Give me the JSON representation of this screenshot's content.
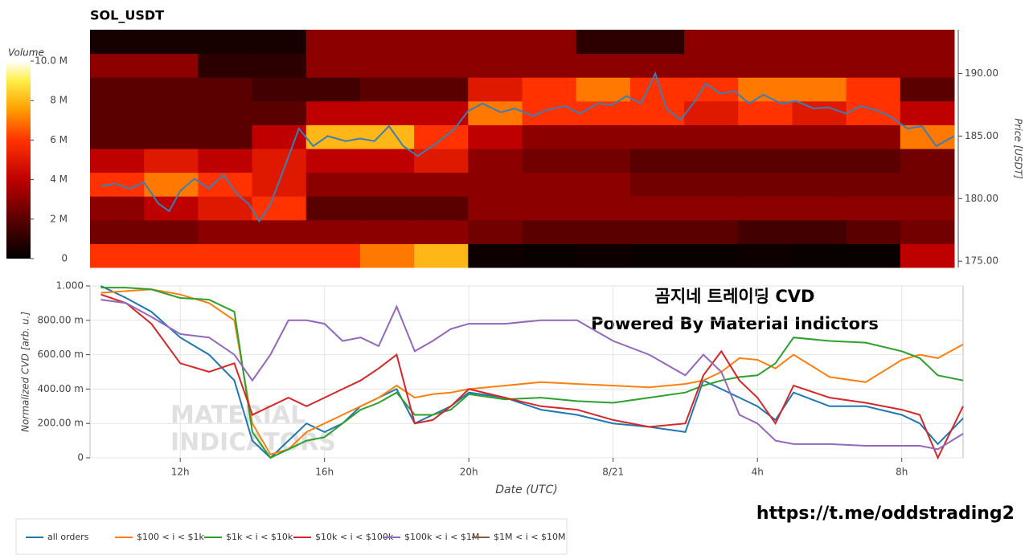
{
  "chart_data": [
    {
      "type": "heatmap",
      "title": "SOL_USDT",
      "colorbar_title": "Volume",
      "colorbar_lim": [
        0,
        10
      ],
      "colorbar_ticks": [
        0,
        {
          "value": 2,
          "label": "2 M"
        },
        {
          "value": 4,
          "label": "4 M"
        },
        {
          "value": 6,
          "label": "6 M"
        },
        {
          "value": 8,
          "label": "8 M"
        },
        {
          "value": 10,
          "label": "10.0 M"
        }
      ],
      "ylabel": "Price [USDT]",
      "ylim": [
        174.5,
        193.5
      ],
      "yticks": [
        {
          "value": 175,
          "label": "175.00"
        },
        {
          "value": 180,
          "label": "180.00"
        },
        {
          "value": 185,
          "label": "185.00"
        },
        {
          "value": 190,
          "label": "190.00"
        }
      ],
      "xlim": [
        9.5,
        33.5
      ],
      "time_bins": [
        9.5,
        11,
        12.5,
        14,
        15.5,
        17,
        18.5,
        20,
        21.5,
        23,
        24.5,
        26,
        27.5,
        29,
        30.5,
        32,
        33.5
      ],
      "price_bins": [
        174.5,
        176.4,
        178.3,
        180.2,
        182.1,
        184.0,
        185.9,
        187.8,
        189.7,
        191.6,
        193.5
      ],
      "volume": [
        [
          6,
          6,
          6,
          6,
          6,
          7,
          8,
          0.3,
          0.2,
          0.3,
          0.2,
          0.2,
          0.3,
          0.2,
          0.2,
          4
        ],
        [
          2.5,
          2.5,
          3,
          3,
          3,
          3,
          3,
          2.5,
          2,
          2,
          2,
          2,
          1.5,
          1.5,
          2,
          2.5
        ],
        [
          3,
          4,
          5,
          6,
          2,
          2,
          2,
          3,
          3,
          3,
          3,
          3,
          3,
          3,
          3,
          3
        ],
        [
          6,
          7,
          6,
          5,
          3,
          3,
          3,
          3,
          3,
          3,
          2.5,
          2.5,
          2.5,
          2.5,
          2.5,
          2.5
        ],
        [
          4,
          5,
          4,
          5,
          4,
          4,
          5,
          3,
          2.5,
          2.5,
          2,
          2,
          2,
          2,
          2,
          2.5
        ],
        [
          2,
          2,
          2,
          4,
          8,
          8,
          6,
          4,
          3,
          3,
          3,
          3,
          3,
          3,
          3,
          7
        ],
        [
          2,
          2,
          2,
          2,
          4,
          4,
          4,
          7,
          6,
          6,
          6,
          5,
          6,
          5,
          6,
          4
        ],
        [
          2,
          2,
          2,
          1.5,
          1.5,
          2,
          2,
          5,
          6,
          7,
          6,
          6,
          7,
          7,
          6,
          2
        ],
        [
          3,
          3,
          1,
          1,
          3,
          3,
          3,
          3,
          3,
          3,
          3,
          3,
          3,
          3,
          3,
          3
        ],
        [
          0.5,
          0.5,
          0.5,
          0.5,
          3,
          3,
          3,
          3,
          3,
          1,
          1,
          3,
          3,
          3,
          3,
          3
        ]
      ],
      "price": {
        "color": "#3a7fb5",
        "x": [
          9.8,
          10.2,
          10.6,
          11.0,
          11.4,
          11.7,
          12.0,
          12.4,
          12.8,
          13.2,
          13.6,
          13.9,
          14.2,
          14.5,
          14.9,
          15.3,
          15.7,
          16.1,
          16.6,
          17.0,
          17.4,
          17.8,
          18.2,
          18.6,
          19.1,
          19.6,
          20.0,
          20.4,
          20.9,
          21.3,
          21.8,
          22.2,
          22.7,
          23.1,
          23.6,
          24.0,
          24.4,
          24.8,
          25.2,
          25.5,
          25.9,
          26.3,
          26.6,
          27.0,
          27.4,
          27.8,
          28.2,
          28.7,
          29.1,
          29.6,
          30.0,
          30.5,
          30.9,
          31.3,
          31.7,
          32.2,
          32.6,
          33.0,
          33.5
        ],
        "values": [
          181.0,
          181.2,
          180.8,
          181.3,
          179.6,
          179.0,
          180.6,
          181.6,
          180.8,
          181.9,
          180.3,
          179.6,
          178.2,
          179.5,
          182.5,
          185.6,
          184.2,
          185.0,
          184.6,
          184.8,
          184.6,
          185.8,
          184.2,
          183.4,
          184.4,
          185.5,
          187.0,
          187.6,
          186.9,
          187.2,
          186.6,
          187.1,
          187.4,
          186.8,
          187.6,
          187.5,
          188.2,
          187.6,
          190.0,
          187.2,
          186.3,
          187.8,
          189.2,
          188.4,
          188.6,
          187.6,
          188.3,
          187.6,
          187.8,
          187.2,
          187.3,
          186.8,
          187.4,
          187.1,
          186.6,
          185.6,
          185.8,
          184.2,
          185.0
        ]
      }
    },
    {
      "type": "line",
      "xlabel": "Date (UTC)",
      "ylabel": "Normalized CVD [arb. u.]",
      "xlim": [
        9.5,
        33.7
      ],
      "xticks": [
        {
          "value": 12,
          "label": "12h"
        },
        {
          "value": 16,
          "label": "16h"
        },
        {
          "value": 20,
          "label": "20h"
        },
        {
          "value": 24,
          "label": "8/21"
        },
        {
          "value": 28,
          "label": "4h"
        },
        {
          "value": 32,
          "label": "8h"
        }
      ],
      "ylim": [
        0,
        1
      ],
      "yticks": [
        0,
        {
          "value": 0.2,
          "label": "200.00 m"
        },
        {
          "value": 0.4,
          "label": "400.00 m"
        },
        {
          "value": 0.6,
          "label": "600.00 m"
        },
        {
          "value": 0.8,
          "label": "800.00 m"
        },
        {
          "value": 1,
          "label": "1.000"
        }
      ],
      "annotations": [
        "곰지네 트레이딩 CVD",
        "Powered By Material Indictors"
      ],
      "watermark": [
        "MATERIAL",
        "INDICATORS"
      ],
      "x": [
        9.8,
        10.5,
        11.2,
        12,
        12.8,
        13.5,
        14,
        14.5,
        15,
        15.5,
        16,
        16.5,
        17,
        17.5,
        18,
        18.5,
        19,
        19.5,
        20,
        21,
        22,
        23,
        24,
        25,
        26,
        26.5,
        27,
        27.5,
        28,
        28.5,
        29,
        30,
        31,
        32,
        32.5,
        33,
        33.7
      ],
      "series": [
        {
          "name": "all orders",
          "color": "#1f77b4",
          "values": [
            1.0,
            0.93,
            0.85,
            0.7,
            0.6,
            0.45,
            0.1,
            0.0,
            0.1,
            0.2,
            0.15,
            0.2,
            0.3,
            0.35,
            0.4,
            0.2,
            0.25,
            0.3,
            0.38,
            0.35,
            0.28,
            0.25,
            0.2,
            0.18,
            0.15,
            0.45,
            0.4,
            0.35,
            0.3,
            0.22,
            0.38,
            0.3,
            0.3,
            0.25,
            0.2,
            0.08,
            0.23
          ]
        },
        {
          "name": "$100 < i < $1k",
          "color": "#ff7f0e",
          "values": [
            0.96,
            0.97,
            0.98,
            0.95,
            0.9,
            0.8,
            0.2,
            0.02,
            0.05,
            0.15,
            0.2,
            0.25,
            0.3,
            0.35,
            0.42,
            0.35,
            0.37,
            0.38,
            0.4,
            0.42,
            0.44,
            0.43,
            0.42,
            0.41,
            0.43,
            0.45,
            0.5,
            0.58,
            0.57,
            0.52,
            0.6,
            0.47,
            0.44,
            0.57,
            0.6,
            0.58,
            0.66
          ]
        },
        {
          "name": "$1k < i < $10k",
          "color": "#2ca02c",
          "values": [
            0.99,
            0.99,
            0.98,
            0.93,
            0.92,
            0.85,
            0.15,
            0.0,
            0.05,
            0.1,
            0.12,
            0.2,
            0.28,
            0.32,
            0.38,
            0.25,
            0.25,
            0.28,
            0.37,
            0.34,
            0.35,
            0.33,
            0.32,
            0.35,
            0.38,
            0.42,
            0.45,
            0.47,
            0.48,
            0.55,
            0.7,
            0.68,
            0.67,
            0.62,
            0.58,
            0.48,
            0.45
          ]
        },
        {
          "name": "$10k < i < $100k",
          "color": "#d62728",
          "values": [
            0.95,
            0.9,
            0.78,
            0.55,
            0.5,
            0.55,
            0.25,
            0.3,
            0.35,
            0.3,
            0.35,
            0.4,
            0.45,
            0.52,
            0.6,
            0.2,
            0.22,
            0.3,
            0.4,
            0.35,
            0.3,
            0.28,
            0.22,
            0.18,
            0.2,
            0.48,
            0.62,
            0.45,
            0.35,
            0.2,
            0.42,
            0.35,
            0.32,
            0.28,
            0.25,
            0.0,
            0.3
          ]
        },
        {
          "name": "$100k < i < $1M",
          "color": "#9467bd",
          "values": [
            0.92,
            0.9,
            0.82,
            0.72,
            0.7,
            0.6,
            0.45,
            0.6,
            0.8,
            0.8,
            0.78,
            0.68,
            0.7,
            0.65,
            0.88,
            0.62,
            0.68,
            0.75,
            0.78,
            0.78,
            0.8,
            0.8,
            0.68,
            0.6,
            0.48,
            0.6,
            0.5,
            0.25,
            0.2,
            0.1,
            0.08,
            0.08,
            0.07,
            0.07,
            0.07,
            0.05,
            0.14
          ]
        },
        {
          "name": "$1M < i < $10M",
          "color": "#8c564b",
          "values": [
            null,
            null,
            null,
            null,
            null,
            null,
            null,
            null,
            null,
            null,
            null,
            null,
            null,
            null,
            null,
            null,
            null,
            null,
            null,
            null,
            null,
            null,
            null,
            null,
            null,
            null,
            null,
            null,
            null,
            null,
            null,
            null,
            null,
            null,
            null,
            null,
            null
          ]
        }
      ]
    }
  ],
  "footer": {
    "link": "https://t.me/oddstrading2"
  }
}
